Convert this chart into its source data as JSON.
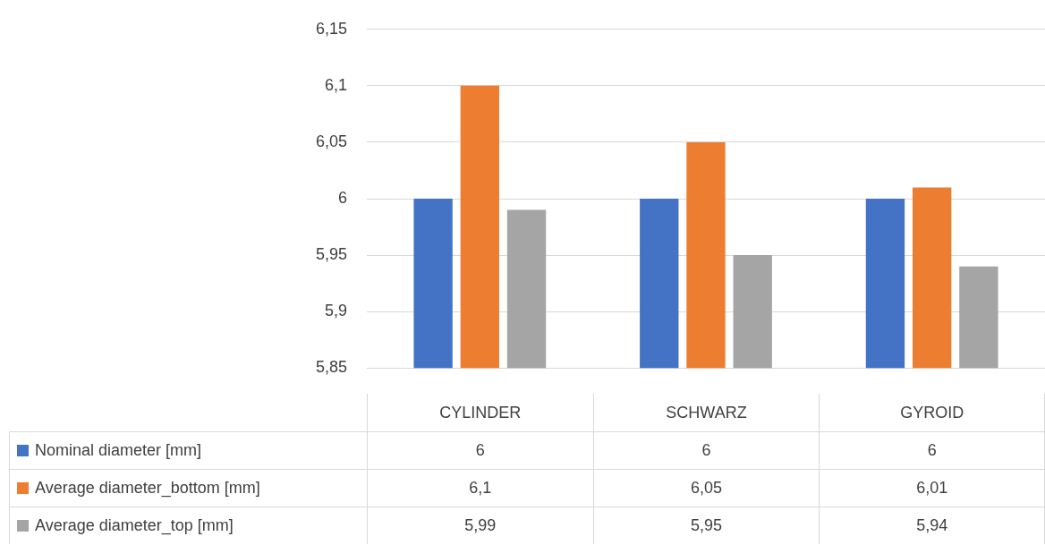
{
  "chart_data": {
    "type": "bar",
    "categories": [
      "CYLINDER",
      "SCHWARZ",
      "GYROID"
    ],
    "series": [
      {
        "name": "Nominal diameter [mm]",
        "color": "#4472c4",
        "values": [
          6,
          6,
          6
        ],
        "value_labels": [
          "6",
          "6",
          "6"
        ]
      },
      {
        "name": "Average diameter_bottom [mm]",
        "color": "#ed7d31",
        "values": [
          6.1,
          6.05,
          6.01
        ],
        "value_labels": [
          "6,1",
          "6,05",
          "6,01"
        ]
      },
      {
        "name": "Average diameter_top [mm]",
        "color": "#a5a5a5",
        "values": [
          5.99,
          5.95,
          5.94
        ],
        "value_labels": [
          "5,99",
          "5,95",
          "5,94"
        ]
      }
    ],
    "ylim": [
      5.85,
      6.15
    ],
    "yticks": [
      {
        "value": 5.85,
        "label": "5,85"
      },
      {
        "value": 5.9,
        "label": "5,9"
      },
      {
        "value": 5.95,
        "label": "5,95"
      },
      {
        "value": 6,
        "label": "6"
      },
      {
        "value": 6.05,
        "label": "6,05"
      },
      {
        "value": 6.1,
        "label": "6,1"
      },
      {
        "value": 6.15,
        "label": "6,15"
      }
    ],
    "grid": "y",
    "legend": "bottom"
  }
}
